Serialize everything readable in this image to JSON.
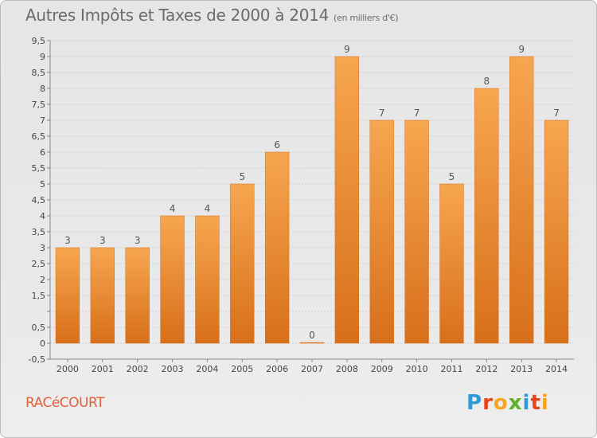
{
  "title": {
    "main": "Autres Impôts et Taxes de 2000 à 2014",
    "unit": "(en milliers d'€)"
  },
  "commune": "RACéCOURT",
  "logo": {
    "text": "Proxiti",
    "colors": [
      "#2e9ad6",
      "#e8441a",
      "#f7a620",
      "#5fb12b",
      "#2e9ad6",
      "#e8441a",
      "#f7a620"
    ]
  },
  "colors": {
    "bar_light": "#f7a650",
    "bar_dark": "#d86f1a",
    "axis": "#888888",
    "grid": "#cfcfcf"
  },
  "chart_data": {
    "type": "bar",
    "categories": [
      "2000",
      "2001",
      "2002",
      "2003",
      "2004",
      "2005",
      "2006",
      "2007",
      "2008",
      "2009",
      "2010",
      "2011",
      "2012",
      "2013",
      "2014"
    ],
    "values": [
      3,
      3,
      3,
      4,
      4,
      5,
      6,
      0,
      9,
      7,
      7,
      5,
      8,
      9,
      7
    ],
    "data_labels": [
      "3",
      "3",
      "3",
      "4",
      "4",
      "5",
      "6",
      "0",
      "9",
      "7",
      "7",
      "5",
      "8",
      "9",
      "7"
    ],
    "ylim": [
      -0.5,
      9.5
    ],
    "y_ticks": [
      -0.5,
      0,
      0.5,
      1,
      1.5,
      2,
      2.5,
      3,
      3.5,
      4,
      4.5,
      5,
      5.5,
      6,
      6.5,
      7,
      7.5,
      8,
      8.5,
      9,
      9.5
    ],
    "y_tick_labels": [
      "-0,5",
      "0",
      "0,5",
      "",
      "1,5",
      "2",
      "2,5",
      "3",
      "3,5",
      "4",
      "4,5",
      "5",
      "5,5",
      "6",
      "6,5",
      "7",
      "7,5",
      "8",
      "8,5",
      "9",
      "9,5"
    ],
    "grid": true,
    "xlabel": "",
    "ylabel": ""
  }
}
